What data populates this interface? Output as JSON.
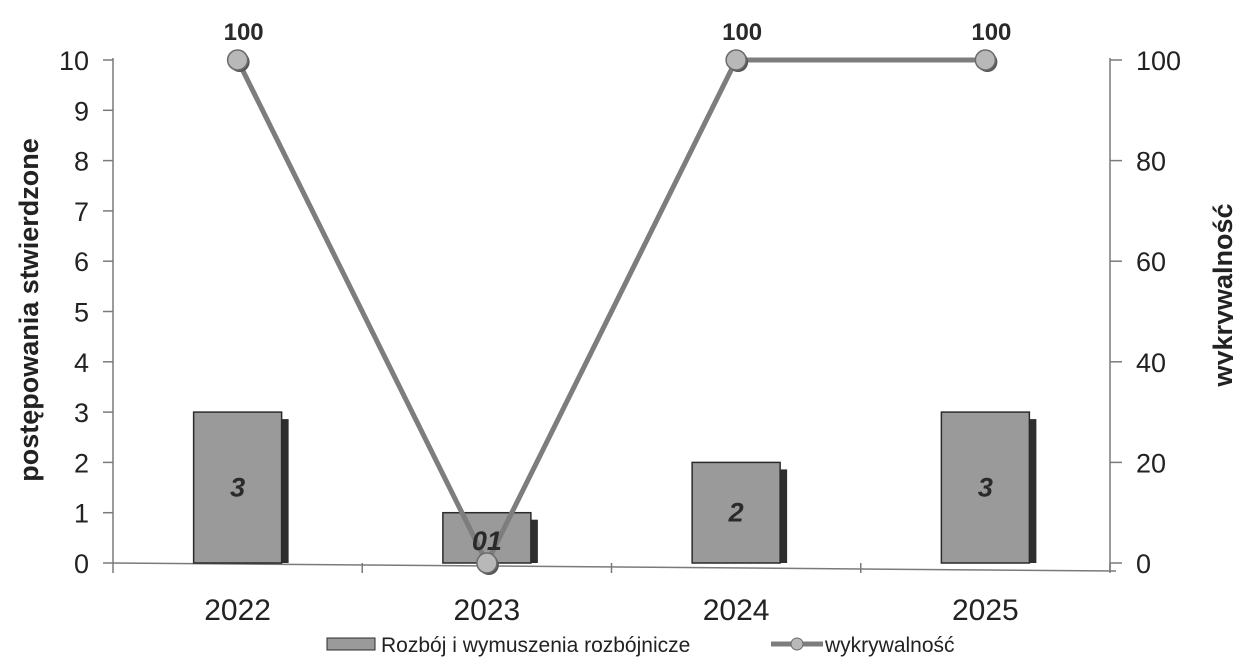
{
  "chart_data": {
    "type": "bar",
    "categories": [
      "2022",
      "2023",
      "2024",
      "2025"
    ],
    "series": [
      {
        "name": "Rozbój i wymuszenia rozbójnicze",
        "type": "bar",
        "axis": "left",
        "values": [
          3,
          1,
          2,
          3
        ],
        "labels": [
          "3",
          "01",
          "2",
          "3"
        ]
      },
      {
        "name": "wykrywalność",
        "type": "line",
        "axis": "right",
        "values": [
          100,
          0,
          100,
          100
        ],
        "labels": [
          "100",
          "",
          "100",
          "100"
        ]
      }
    ],
    "ylabel": "postępowania stwierdzone",
    "y2label": "wykrywalność",
    "ylim": [
      0,
      10
    ],
    "y2lim": [
      0,
      100
    ],
    "yticks": [
      "0",
      "1",
      "2",
      "3",
      "4",
      "5",
      "6",
      "7",
      "8",
      "9",
      "10"
    ],
    "y2ticks": [
      "0",
      "20",
      "40",
      "60",
      "80",
      "100"
    ],
    "grid": false,
    "legend_position": "bottom",
    "colors": {
      "bar": "#9a9a9a",
      "bar_edge": "#2b2b2b",
      "bar_shadow": "#2e2e2e",
      "line": "#7d7d7d",
      "marker": "#b8b8b8",
      "axis": "#7a7a7a"
    }
  }
}
